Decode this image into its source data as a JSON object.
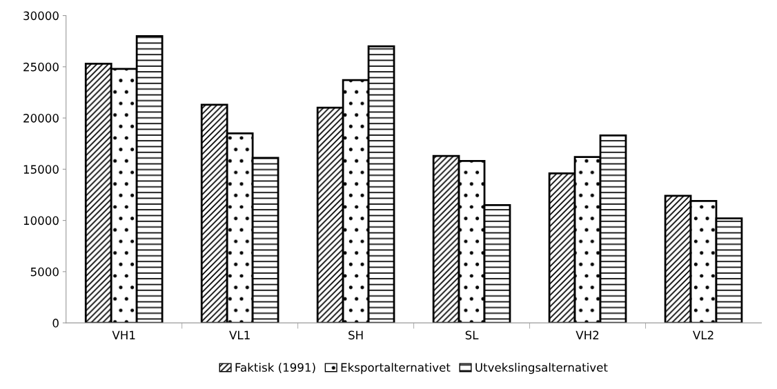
{
  "chart_data": {
    "type": "bar",
    "categories": [
      "VH1",
      "VL1",
      "SH",
      "SL",
      "VH2",
      "VL2"
    ],
    "series": [
      {
        "name": "Faktisk (1991)",
        "color": "#000000",
        "values": [
          25300,
          21300,
          21000,
          16300,
          14600,
          12400
        ]
      },
      {
        "name": "Eksportalternativet",
        "color": "#000000",
        "values": [
          24800,
          18500,
          23700,
          15800,
          16200,
          11900
        ]
      },
      {
        "name": "Utvekslingsalternativet",
        "color": "#000000",
        "values": [
          28000,
          16100,
          27000,
          11500,
          18300,
          10200
        ]
      }
    ],
    "ylim": [
      0,
      30000
    ],
    "yticks": [
      0,
      5000,
      10000,
      15000,
      20000,
      25000,
      30000
    ],
    "grid": false,
    "legend": "bottom"
  }
}
